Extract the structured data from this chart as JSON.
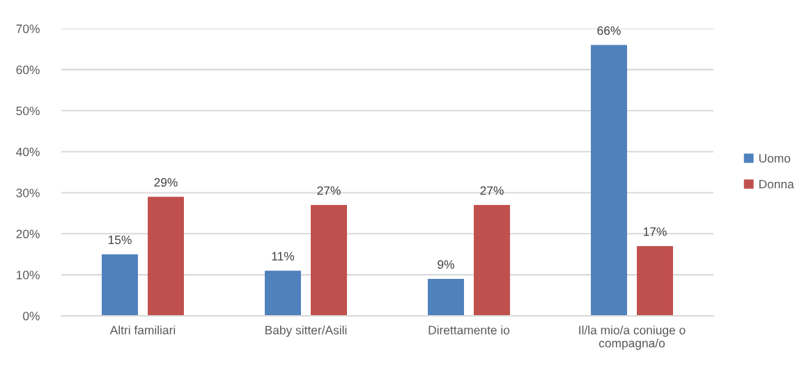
{
  "chart_data": {
    "type": "bar",
    "categories": [
      "Altri familiari",
      "Baby sitter/Asili",
      "Direttamente io",
      "Il/la mio/a coniuge o\ncompagna/o"
    ],
    "series": [
      {
        "name": "Uomo",
        "color": "#4f81bd",
        "values": [
          15,
          11,
          9,
          66
        ],
        "value_labels": [
          "15%",
          "11%",
          "9%",
          "66%"
        ]
      },
      {
        "name": "Donna",
        "color": "#c0504d",
        "values": [
          29,
          27,
          27,
          17
        ],
        "value_labels": [
          "29%",
          "27%",
          "27%",
          "17%"
        ]
      }
    ],
    "ylim": [
      0,
      70
    ],
    "yticks": [
      {
        "value": 0,
        "label": "0%"
      },
      {
        "value": 10,
        "label": "10%"
      },
      {
        "value": 20,
        "label": "20%"
      },
      {
        "value": 30,
        "label": "30%"
      },
      {
        "value": 40,
        "label": "40%"
      },
      {
        "value": 50,
        "label": "50%"
      },
      {
        "value": 60,
        "label": "60%"
      },
      {
        "value": 70,
        "label": "70%"
      }
    ],
    "grid": "y",
    "legend": "right"
  }
}
